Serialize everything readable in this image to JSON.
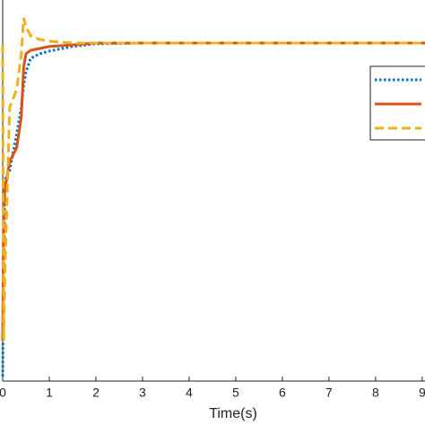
{
  "chart_data": {
    "type": "line",
    "xlabel": "Time(s)",
    "x": [
      0,
      0.02,
      0.05,
      0.15,
      0.3,
      0.4,
      0.45,
      0.5,
      0.6,
      0.8,
      1,
      1.5,
      2,
      3,
      5,
      9.06
    ],
    "series": [
      {
        "color": "#0072bd",
        "style": "dotted",
        "values": [
          0.012,
          0.294,
          0.529,
          0.553,
          0.647,
          0.718,
          0.776,
          0.812,
          0.847,
          0.859,
          0.866,
          0.878,
          0.885,
          0.887,
          0.887,
          0.887
        ]
      },
      {
        "color": "#d95319",
        "style": "solid",
        "values": [
          0.106,
          0.459,
          0.506,
          0.576,
          0.612,
          0.694,
          0.824,
          0.859,
          0.868,
          0.873,
          0.878,
          0.882,
          0.887,
          0.887,
          0.887,
          0.887
        ]
      },
      {
        "color": "#edb120",
        "style": "dashed",
        "values": [
          0.882,
          0.106,
          0.294,
          0.718,
          0.765,
          0.859,
          0.953,
          0.929,
          0.906,
          0.896,
          0.892,
          0.887,
          0.887,
          0.887,
          0.887,
          0.887
        ]
      }
    ],
    "xlim": [
      0,
      9.06
    ],
    "ylim": [
      0,
      1
    ],
    "xticks": [
      0,
      1,
      2,
      3,
      4,
      5,
      6,
      7,
      8,
      9
    ]
  }
}
